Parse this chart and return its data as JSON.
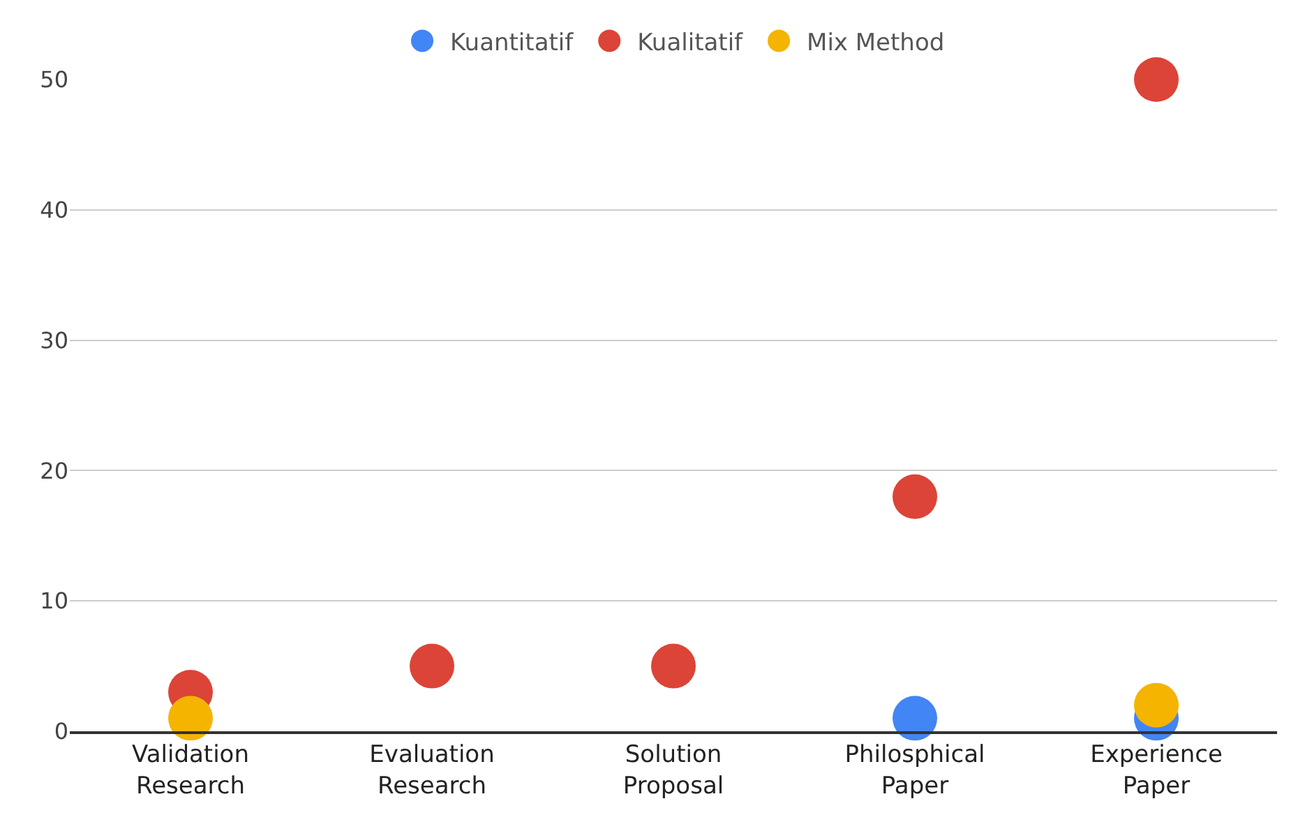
{
  "chart_data": {
    "type": "scatter",
    "categories": [
      "Validation Research",
      "Evaluation Research",
      "Solution Proposal",
      "Philosphical Paper",
      "Experience Paper"
    ],
    "series": [
      {
        "name": "Kuantitatif",
        "color": "#4285f4",
        "values": [
          null,
          null,
          null,
          1,
          1
        ]
      },
      {
        "name": "Kualitatif",
        "color": "#db4437",
        "values": [
          3,
          5,
          5,
          18,
          50
        ]
      },
      {
        "name": "Mix Method",
        "color": "#f4b400",
        "values": [
          1,
          null,
          null,
          null,
          2
        ]
      }
    ],
    "ylim": [
      0,
      50
    ],
    "yticks": [
      0,
      10,
      20,
      30,
      40,
      50
    ],
    "grid": "y",
    "legend": "top",
    "marker": "circle"
  }
}
